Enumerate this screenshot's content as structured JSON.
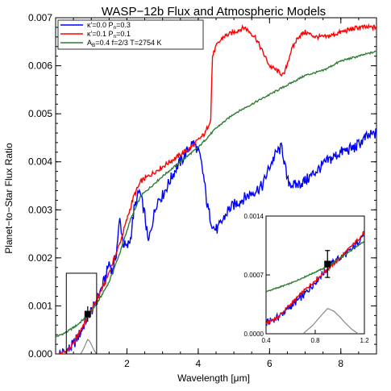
{
  "chart_data": {
    "type": "line",
    "title": "WASP−12b Flux and Atmospheric Models",
    "xlabel": "Wavelength [μm]",
    "ylabel": "Planet−to−Star Flux Ratio",
    "xlim": [
      0,
      9
    ],
    "ylim": [
      0,
      0.007
    ],
    "x_ticks": [
      2,
      4,
      6,
      8
    ],
    "x_tick_labels": [
      "2",
      "4",
      "6",
      "8"
    ],
    "y_ticks": [
      0,
      0.001,
      0.002,
      0.003,
      0.004,
      0.005,
      0.006,
      0.007
    ],
    "y_tick_labels": [
      "0.000",
      "0.001",
      "0.002",
      "0.003",
      "0.004",
      "0.005",
      "0.006",
      "0.007"
    ],
    "legend_position": "top-left",
    "series": [
      {
        "name_text": "κ′=0.0 P",
        "name_sub": "n",
        "name_tail": "=0.3",
        "color": "#0000ff",
        "x": [
          0.1,
          0.3,
          0.5,
          0.7,
          0.85,
          0.95,
          1.1,
          1.25,
          1.4,
          1.5,
          1.6,
          1.7,
          1.8,
          1.9,
          2.0,
          2.1,
          2.2,
          2.35,
          2.5,
          2.6,
          2.7,
          2.85,
          3.0,
          3.2,
          3.4,
          3.6,
          3.75,
          3.85,
          3.95,
          4.05,
          4.15,
          4.25,
          4.35,
          4.45,
          4.55,
          4.7,
          4.85,
          5.0,
          5.2,
          5.4,
          5.6,
          5.8,
          6.0,
          6.2,
          6.35,
          6.5,
          6.7,
          7.0,
          7.3,
          7.6,
          8.0,
          8.4,
          8.7,
          9.0
        ],
        "y": [
          0.0,
          5e-05,
          0.0002,
          0.00045,
          0.0007,
          0.00085,
          0.001,
          0.0013,
          0.0016,
          0.0019,
          0.0017,
          0.0021,
          0.0028,
          0.0023,
          0.0022,
          0.0024,
          0.003,
          0.0034,
          0.0029,
          0.0023,
          0.0027,
          0.0032,
          0.0033,
          0.0036,
          0.0039,
          0.0041,
          0.0043,
          0.0044,
          0.0043,
          0.0041,
          0.0037,
          0.0031,
          0.0028,
          0.0026,
          0.0026,
          0.0028,
          0.003,
          0.0031,
          0.0032,
          0.0033,
          0.0034,
          0.0035,
          0.0039,
          0.0042,
          0.0043,
          0.0036,
          0.0035,
          0.0036,
          0.0038,
          0.004,
          0.0042,
          0.0043,
          0.0045,
          0.0046
        ]
      },
      {
        "name_text": "κ′=0.1 P",
        "name_sub": "n",
        "name_tail": "=0.1",
        "color": "#ff0000",
        "x": [
          0.1,
          0.3,
          0.5,
          0.7,
          0.85,
          1.0,
          1.2,
          1.4,
          1.6,
          1.8,
          2.0,
          2.2,
          2.4,
          2.6,
          2.8,
          3.0,
          3.2,
          3.4,
          3.6,
          3.8,
          4.0,
          4.2,
          4.35,
          4.4,
          4.5,
          4.7,
          5.0,
          5.3,
          5.6,
          5.8,
          6.0,
          6.2,
          6.4,
          6.6,
          6.8,
          7.0,
          7.3,
          7.6,
          8.0,
          8.5,
          9.0
        ],
        "y": [
          0.0,
          5e-05,
          0.0002,
          0.0005,
          0.0007,
          0.0009,
          0.0012,
          0.0015,
          0.0019,
          0.0023,
          0.0028,
          0.0033,
          0.0036,
          0.0037,
          0.0038,
          0.0039,
          0.004,
          0.0041,
          0.0042,
          0.0043,
          0.00445,
          0.0046,
          0.0049,
          0.0062,
          0.0064,
          0.0066,
          0.0067,
          0.0068,
          0.0066,
          0.0063,
          0.006,
          0.0059,
          0.0058,
          0.0063,
          0.0066,
          0.0067,
          0.0066,
          0.0066,
          0.0067,
          0.0068,
          0.0068
        ]
      },
      {
        "name_text": "A",
        "name_sub": "B",
        "name_tail": "=0.4  f=2/3  T=2754 K",
        "color": "#2e7d32",
        "x": [
          0.0,
          0.3,
          0.6,
          0.9,
          1.2,
          1.5,
          1.8,
          2.1,
          2.4,
          2.7,
          3.0,
          3.5,
          4.0,
          4.5,
          5.0,
          5.5,
          6.0,
          6.5,
          7.0,
          7.5,
          8.0,
          8.5,
          9.0
        ],
        "y": [
          0.00035,
          0.00045,
          0.0006,
          0.0008,
          0.0011,
          0.0015,
          0.0021,
          0.0028,
          0.0033,
          0.0035,
          0.0037,
          0.004,
          0.0043,
          0.0047,
          0.005,
          0.0052,
          0.0054,
          0.0056,
          0.0058,
          0.0059,
          0.0061,
          0.0062,
          0.0063
        ]
      }
    ],
    "measurement": {
      "x": 0.9,
      "y": 0.00083,
      "yerr": 0.00016
    },
    "filter_profile": {
      "color": "#888888",
      "x": [
        0.7,
        0.78,
        0.85,
        0.9,
        0.95,
        1.0,
        1.05,
        1.1,
        1.15
      ],
      "y": [
        0.0,
        0.0001,
        0.00022,
        0.0003,
        0.00027,
        0.0002,
        0.00012,
        5e-05,
        0.0
      ]
    },
    "inset": {
      "xlim": [
        0.4,
        1.2
      ],
      "ylim": [
        0,
        0.0014
      ],
      "x_ticks": [
        0.4,
        0.8,
        1.2
      ],
      "x_tick_labels": [
        "0.4",
        "0.8",
        "1.2"
      ],
      "y_ticks": [
        0,
        0.0007,
        0.0014
      ],
      "y_tick_labels": [
        "0.0000",
        "0.0007",
        "0.0014"
      ],
      "zoom_box_x": [
        0.4,
        1.2
      ],
      "zoom_box_y": [
        0,
        0.0014
      ]
    }
  }
}
